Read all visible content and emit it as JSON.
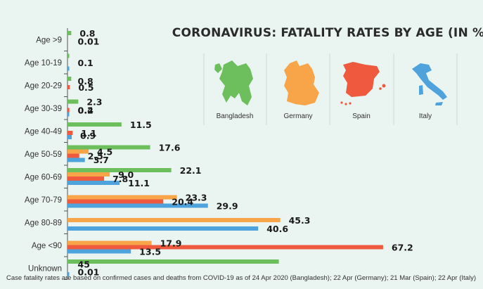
{
  "colors": {
    "background": "#eaf4f1",
    "Bangladesh": "#6cbf5c",
    "Germany": "#f8a54a",
    "Spain": "#ef5a3f",
    "Italy": "#4fa3dc",
    "axis": "#555555",
    "separator": "#cfd8d5"
  },
  "legend": {
    "items": [
      {
        "name": "Bangladesh",
        "icon": "bangladesh-map-icon"
      },
      {
        "name": "Germany",
        "icon": "germany-map-icon"
      },
      {
        "name": "Spain",
        "icon": "spain-map-icon"
      },
      {
        "name": "Italy",
        "icon": "italy-map-icon"
      }
    ]
  },
  "chart_data": {
    "type": "bar",
    "orientation": "horizontal",
    "title": "CORONAVIRUS: FATALITY RATES BY AGE (IN %)",
    "xlabel": "",
    "ylabel": "",
    "xlim": [
      0,
      70
    ],
    "grid": false,
    "legend_position": "top-right",
    "categories": [
      "Age >9",
      "Age 10-19",
      "Age 20-29",
      "Age 30-39",
      "Age 40-49",
      "Age 50-59",
      "Age 60-69",
      "Age 70-79",
      "Age 80-89",
      "Age <90",
      "Unknown"
    ],
    "series": [
      {
        "name": "Bangladesh",
        "values": [
          0.8,
          0.01,
          0.8,
          2.3,
          11.5,
          17.6,
          22.1,
          null,
          null,
          null,
          45
        ]
      },
      {
        "name": "Germany",
        "values": [
          null,
          null,
          null,
          0.0,
          0.0,
          4.5,
          9.0,
          23.3,
          45.3,
          17.9,
          null
        ]
      },
      {
        "name": "Spain",
        "values": [
          null,
          null,
          0.5,
          0.4,
          1.1,
          2.5,
          7.8,
          20.4,
          null,
          67.2,
          null
        ]
      },
      {
        "name": "Italy",
        "values": [
          null,
          0.1,
          null,
          0.2,
          0.9,
          3.7,
          11.1,
          29.9,
          40.6,
          13.5,
          0.01
        ]
      }
    ],
    "data_labels": [
      {
        "cat": 0,
        "text": "0.8",
        "row": 0
      },
      {
        "cat": 0,
        "text": "0.01",
        "row": 1.9
      },
      {
        "cat": 1,
        "text": "0.1",
        "row": 1.6
      },
      {
        "cat": 2,
        "text": "0.8",
        "row": 0.5
      },
      {
        "cat": 2,
        "text": "0.5",
        "row": 2
      },
      {
        "cat": 3,
        "text": "2.3",
        "row": 0
      },
      {
        "cat": 3,
        "text": "0.4",
        "row": 2
      },
      {
        "cat": 3,
        "text": "0.2",
        "row": 2,
        "anchor_series": 3
      },
      {
        "cat": 4,
        "text": "11.5",
        "row": 0
      },
      {
        "cat": 4,
        "text": "1.1",
        "row": 2
      },
      {
        "cat": 4,
        "text": "0.9",
        "row": 2.6,
        "anchor_series": 3
      },
      {
        "cat": 5,
        "text": "17.6",
        "row": 0
      },
      {
        "cat": 5,
        "text": "4.5",
        "row": 1
      },
      {
        "cat": 5,
        "text": "2.5",
        "row": 2
      },
      {
        "cat": 5,
        "text": "3.7",
        "row": 2.9,
        "anchor_series": 3
      },
      {
        "cat": 6,
        "text": "22.1",
        "row": 0
      },
      {
        "cat": 6,
        "text": "9.0",
        "row": 1
      },
      {
        "cat": 6,
        "text": "7.8",
        "row": 2
      },
      {
        "cat": 6,
        "text": "11.1",
        "row": 3
      },
      {
        "cat": 7,
        "text": "23.3",
        "row": 1
      },
      {
        "cat": 7,
        "text": "20.4",
        "row": 2
      },
      {
        "cat": 7,
        "text": "29.9",
        "row": 3
      },
      {
        "cat": 8,
        "text": "45.3",
        "row": 1
      },
      {
        "cat": 8,
        "text": "40.6",
        "row": 3
      },
      {
        "cat": 9,
        "text": "17.9",
        "row": 1
      },
      {
        "cat": 9,
        "text": "67.2",
        "row": 2
      },
      {
        "cat": 9,
        "text": "13.5",
        "row": 3
      },
      {
        "cat": 10,
        "text": "45",
        "row": 0.6
      },
      {
        "cat": 10,
        "text": "0.01",
        "row": 2.4,
        "anchor_series": 3
      }
    ],
    "footnote": "Case fatality rates are based on confirmed cases and deaths from COVID-19 as of 24 Apr 2020 (Bangladesh); 22 Apr (Germany); 21 Mar (Spain); 22 Apr (Italy)"
  }
}
